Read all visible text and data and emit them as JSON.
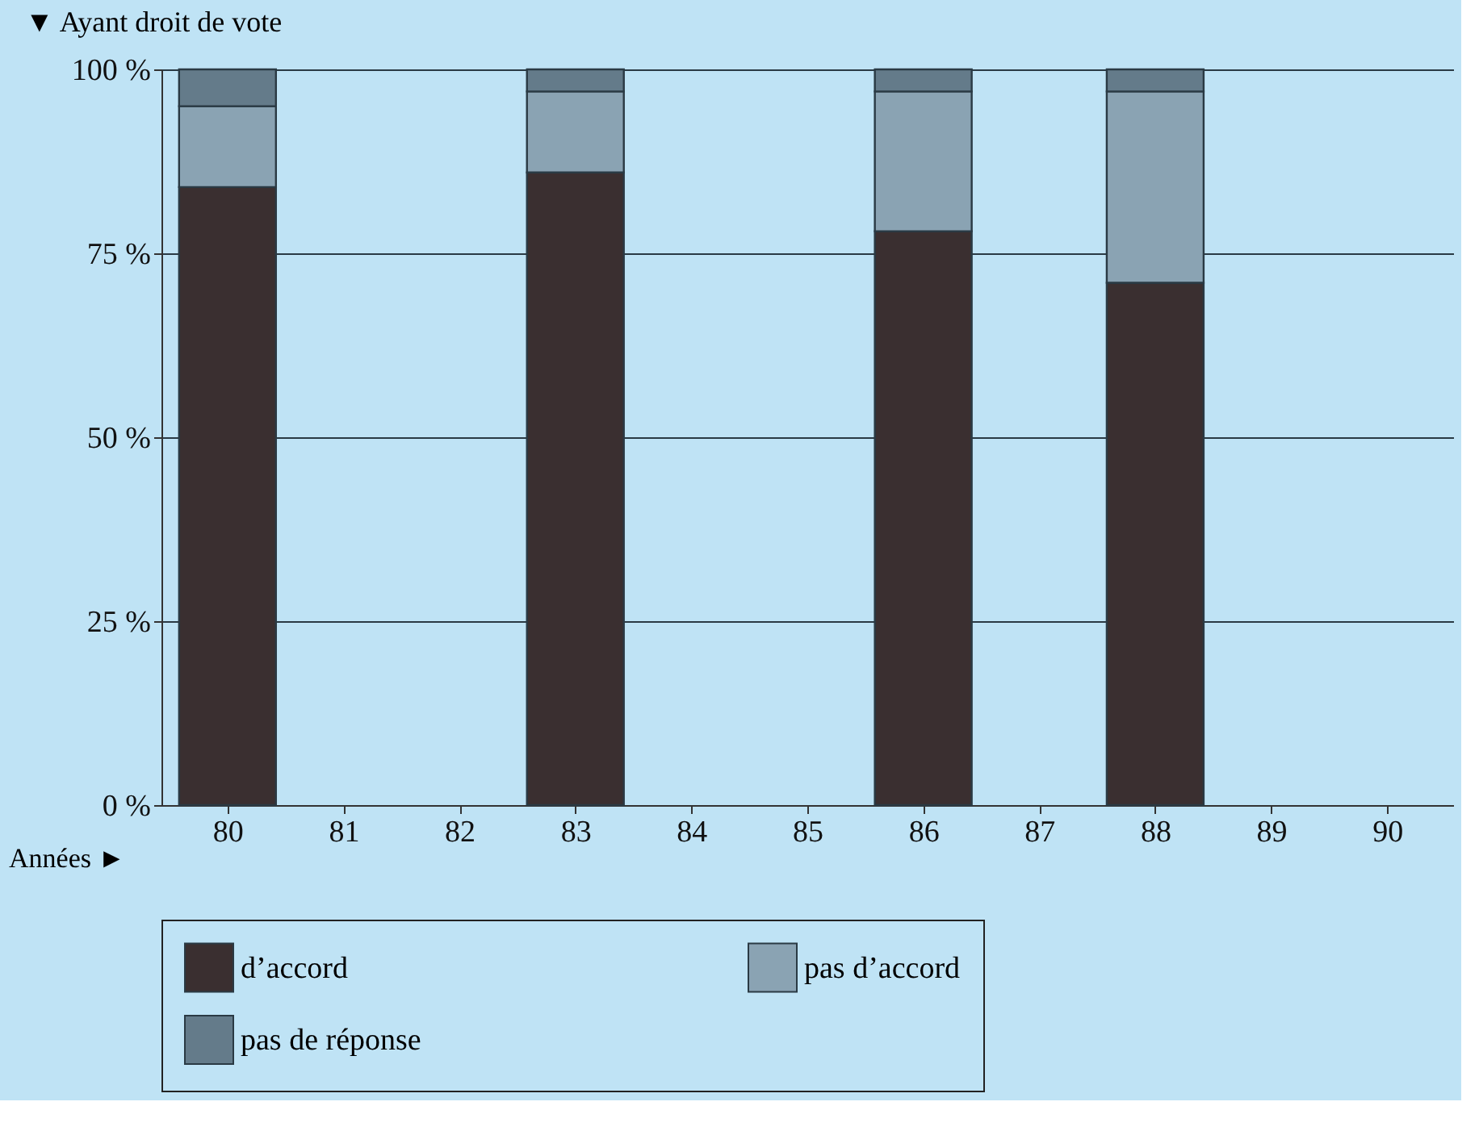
{
  "chart_data": {
    "type": "bar",
    "stacked": true,
    "ylabel": "▼ Ayant droit de vote",
    "xlabel": "Années ►",
    "categories": [
      "80",
      "81",
      "82",
      "83",
      "84",
      "85",
      "86",
      "87",
      "88",
      "89",
      "90"
    ],
    "series": [
      {
        "name": "d’accord",
        "color": "#3a2f30",
        "values": [
          84,
          null,
          null,
          86,
          null,
          null,
          78,
          null,
          71,
          null,
          null
        ]
      },
      {
        "name": "pas d’accord",
        "color": "#8aa3b3",
        "values": [
          11,
          null,
          null,
          11,
          null,
          null,
          19,
          null,
          26,
          null,
          null
        ]
      },
      {
        "name": "pas de réponse",
        "color": "#647b8a",
        "values": [
          5,
          null,
          null,
          3,
          null,
          null,
          3,
          null,
          3,
          null,
          null
        ]
      }
    ],
    "ylim": [
      0,
      100
    ],
    "yticks": [
      {
        "value": 0,
        "label": "0 %"
      },
      {
        "value": 25,
        "label": "25 %"
      },
      {
        "value": 50,
        "label": "50 %"
      },
      {
        "value": 75,
        "label": "75 %"
      },
      {
        "value": 100,
        "label": "100 %"
      }
    ],
    "grid": "y",
    "legend": "bottom"
  }
}
